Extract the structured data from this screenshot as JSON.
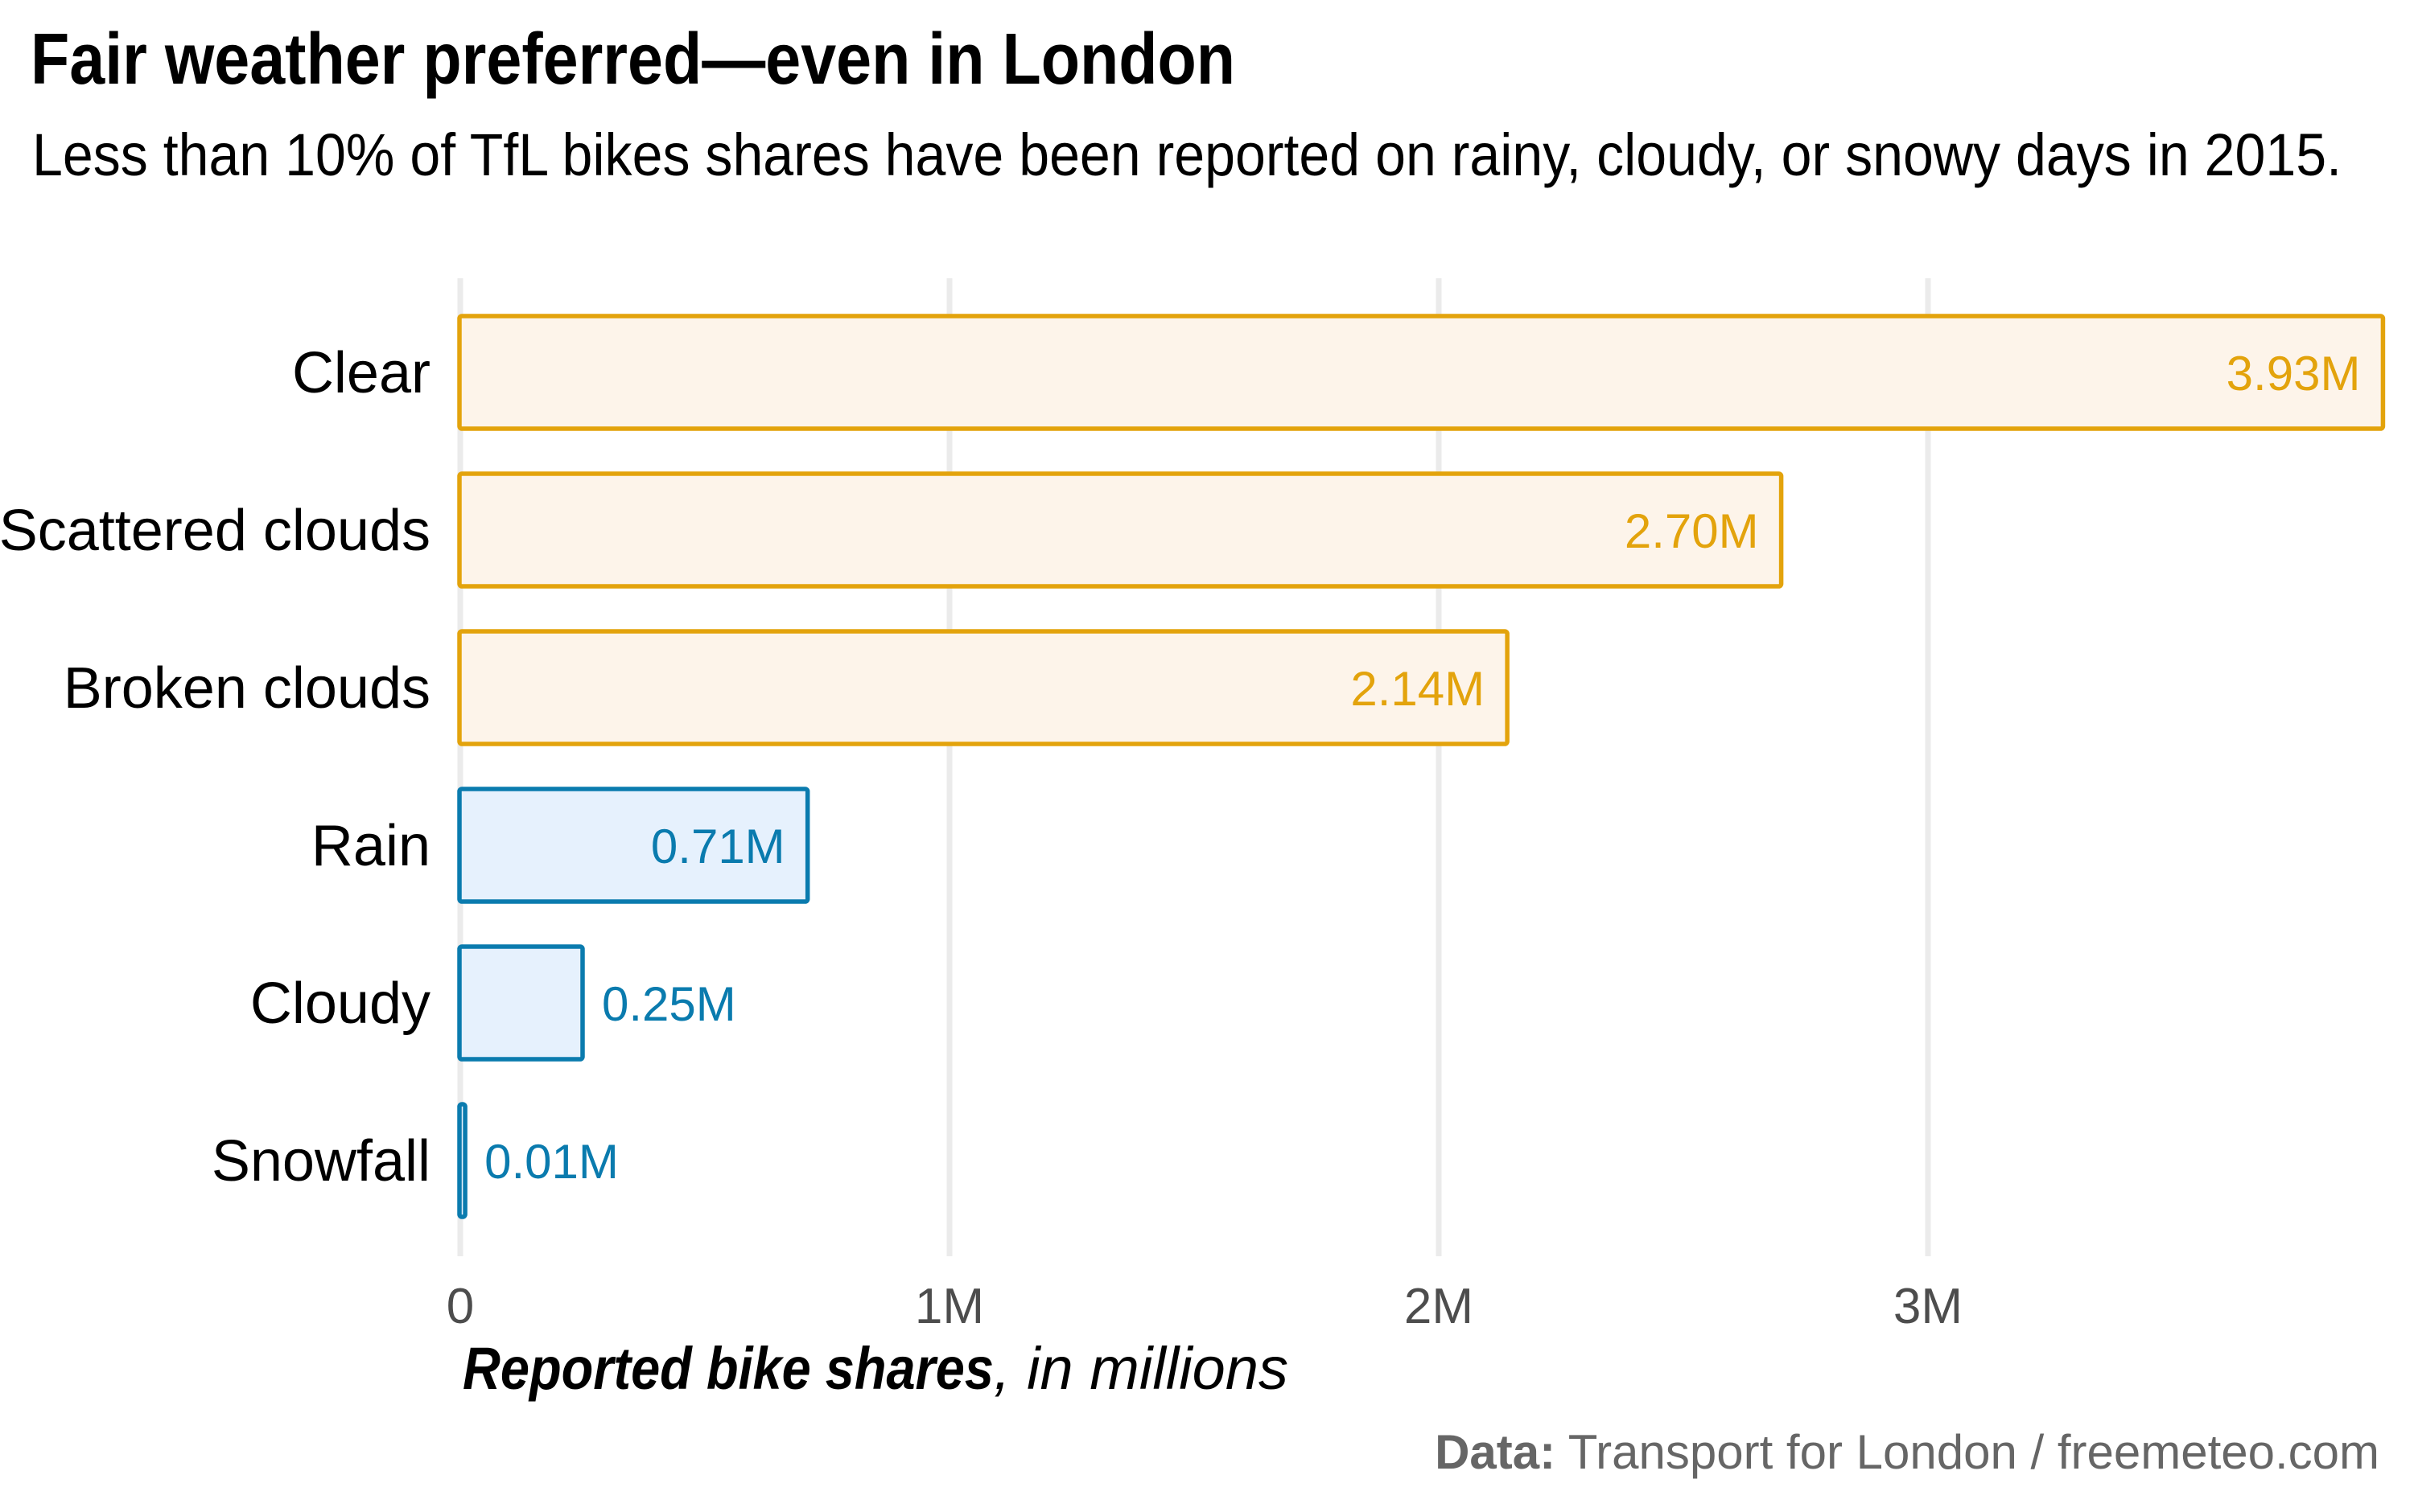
{
  "title": "Fair weather preferred—even in London",
  "subtitle": "Less than 10% of TfL bikes shares have been reported on rainy, cloudy, or snowy days in 2015.",
  "colors": {
    "fair_stroke": "#e3a30c",
    "fair_fill": "#fdf4ea",
    "fair_text": "#e3a30c",
    "bad_stroke": "#0a7bae",
    "bad_fill": "#e6f1fd",
    "bad_text": "#0a7bae",
    "grid": "#ebebeb",
    "tick_text": "#4d4d4d",
    "caption_text": "#666666"
  },
  "caption": {
    "bold": "Data:",
    "text": " Transport for London / freemeteo.com"
  },
  "chart_data": {
    "type": "bar",
    "orientation": "horizontal",
    "title": "Fair weather preferred—even in London",
    "subtitle": "Less than 10% of TfL bikes shares have been reported on rainy, cloudy, or snowy days in 2015.",
    "xlabel_bold": "Reported bike shares",
    "xlabel_rest": ", in millions",
    "ylabel": "",
    "categories": [
      "Clear",
      "Scattered clouds",
      "Broken clouds",
      "Rain",
      "Cloudy",
      "Snowfall"
    ],
    "values": [
      3.93,
      2.7,
      2.14,
      0.71,
      0.25,
      0.01
    ],
    "value_labels": [
      "3.93M",
      "2.70M",
      "2.14M",
      "0.71M",
      "0.25M",
      "0.01M"
    ],
    "groups": [
      "fair",
      "fair",
      "fair",
      "bad",
      "bad",
      "bad"
    ],
    "unit": "millions",
    "xlim": [
      0,
      3.93
    ],
    "xticks": [
      0,
      1,
      2,
      3
    ],
    "xtick_labels": [
      "0",
      "1M",
      "2M",
      "3M"
    ],
    "grid": "vertical major",
    "legend": "none"
  }
}
